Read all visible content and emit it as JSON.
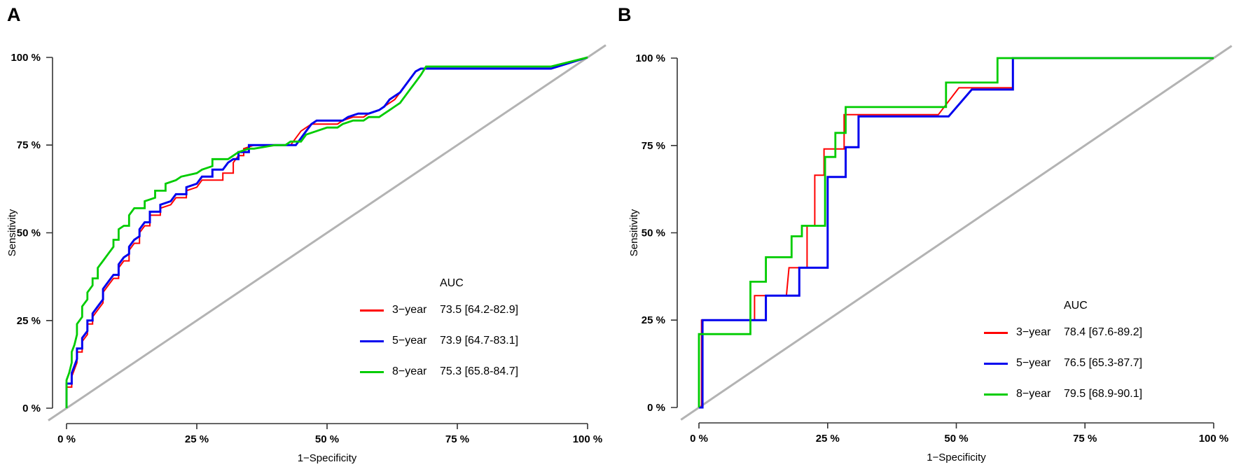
{
  "figure": {
    "background": "#ffffff",
    "axis_color": "#333333"
  },
  "chart_data": [
    {
      "id": "A",
      "panel_label": "A",
      "type": "line",
      "subtype": "roc-step-curves",
      "xlabel": "1−Specificity",
      "ylabel": "Sensitivity",
      "xlim": [
        0,
        100
      ],
      "ylim": [
        0,
        100
      ],
      "x_tick_labels": [
        "0 %",
        "25 %",
        "50 %",
        "75 %",
        "100 %"
      ],
      "y_tick_labels": [
        "0 %",
        "25 %",
        "50 %",
        "75 %",
        "100 %"
      ],
      "x_tick_values": [
        0,
        25,
        50,
        75,
        100
      ],
      "y_tick_values": [
        0,
        25,
        50,
        75,
        100
      ],
      "grid": false,
      "diagonal_reference": true,
      "diagonal_color": "#b3b3b3",
      "legend": {
        "header": "AUC",
        "position": "lower-right"
      },
      "series": [
        {
          "id": "red",
          "name": "3−year",
          "auc": 73.5,
          "auc_text": "73.5 [64.2-82.9]",
          "color": "#ff0000",
          "width": 2,
          "points": [
            [
              0,
              0
            ],
            [
              0,
              6
            ],
            [
              1,
              6
            ],
            [
              1,
              9
            ],
            [
              1.5,
              11
            ],
            [
              2,
              13
            ],
            [
              2,
              16
            ],
            [
              3,
              16
            ],
            [
              3,
              19
            ],
            [
              4,
              21
            ],
            [
              4,
              24
            ],
            [
              5,
              24
            ],
            [
              5,
              26
            ],
            [
              6,
              28
            ],
            [
              7,
              30
            ],
            [
              7,
              33
            ],
            [
              8,
              35
            ],
            [
              9,
              37
            ],
            [
              10,
              37
            ],
            [
              10,
              40
            ],
            [
              11,
              42
            ],
            [
              12,
              42
            ],
            [
              12,
              45
            ],
            [
              13,
              47
            ],
            [
              14,
              47
            ],
            [
              14,
              50
            ],
            [
              15,
              52
            ],
            [
              16,
              52
            ],
            [
              16,
              55
            ],
            [
              18,
              55
            ],
            [
              18,
              57
            ],
            [
              20,
              58
            ],
            [
              21,
              60
            ],
            [
              23,
              60
            ],
            [
              23,
              62
            ],
            [
              25,
              63
            ],
            [
              26,
              65
            ],
            [
              30,
              65
            ],
            [
              30,
              67
            ],
            [
              32,
              67
            ],
            [
              32,
              70
            ],
            [
              33,
              72
            ],
            [
              34,
              72
            ],
            [
              34,
              74
            ],
            [
              36,
              75
            ],
            [
              43,
              75
            ],
            [
              44,
              77
            ],
            [
              45,
              79
            ],
            [
              46,
              80
            ],
            [
              47,
              81
            ],
            [
              52,
              81
            ],
            [
              53,
              82
            ],
            [
              55,
              83
            ],
            [
              57,
              83
            ],
            [
              58,
              84
            ],
            [
              60,
              85
            ],
            [
              61,
              86
            ],
            [
              62,
              87
            ],
            [
              63,
              88
            ],
            [
              64,
              90
            ],
            [
              65,
              92
            ],
            [
              66,
              94
            ],
            [
              67,
              96
            ],
            [
              68,
              96.8
            ],
            [
              93,
              96.8
            ],
            [
              100,
              100
            ]
          ]
        },
        {
          "id": "blue",
          "name": "5−year",
          "auc": 73.9,
          "auc_text": "73.9 [64.7-83.1]",
          "color": "#0000ee",
          "width": 3,
          "points": [
            [
              0,
              0
            ],
            [
              0,
              7
            ],
            [
              1,
              7
            ],
            [
              1,
              10
            ],
            [
              1.5,
              12
            ],
            [
              2,
              14
            ],
            [
              2,
              17
            ],
            [
              3,
              17
            ],
            [
              3,
              20
            ],
            [
              4,
              22
            ],
            [
              4,
              25
            ],
            [
              5,
              25
            ],
            [
              5,
              27
            ],
            [
              6,
              29
            ],
            [
              7,
              31
            ],
            [
              7,
              34
            ],
            [
              8,
              36
            ],
            [
              9,
              38
            ],
            [
              10,
              38
            ],
            [
              10,
              41
            ],
            [
              11,
              43
            ],
            [
              12,
              44
            ],
            [
              12,
              46
            ],
            [
              13,
              48
            ],
            [
              14,
              49
            ],
            [
              14,
              51
            ],
            [
              15,
              53
            ],
            [
              16,
              53
            ],
            [
              16,
              56
            ],
            [
              18,
              56
            ],
            [
              18,
              58
            ],
            [
              20,
              59
            ],
            [
              21,
              61
            ],
            [
              23,
              61
            ],
            [
              23,
              63
            ],
            [
              25,
              64
            ],
            [
              26,
              66
            ],
            [
              28,
              66
            ],
            [
              28,
              68
            ],
            [
              30,
              68
            ],
            [
              31,
              70
            ],
            [
              32,
              71
            ],
            [
              33,
              71
            ],
            [
              33,
              73
            ],
            [
              35,
              73
            ],
            [
              35,
              75
            ],
            [
              37,
              75
            ],
            [
              44,
              75
            ],
            [
              45,
              77
            ],
            [
              46,
              79
            ],
            [
              47,
              81
            ],
            [
              48,
              82
            ],
            [
              53,
              82
            ],
            [
              54,
              83
            ],
            [
              56,
              84
            ],
            [
              58,
              84
            ],
            [
              60,
              85
            ],
            [
              61,
              86
            ],
            [
              62,
              88
            ],
            [
              63,
              89
            ],
            [
              64,
              90
            ],
            [
              65,
              92
            ],
            [
              66,
              94
            ],
            [
              67,
              96
            ],
            [
              68,
              96.8
            ],
            [
              93,
              96.8
            ],
            [
              100,
              100
            ]
          ]
        },
        {
          "id": "green",
          "name": "8−year",
          "auc": 75.3,
          "auc_text": "75.3 [65.8-84.7]",
          "color": "#00cc00",
          "width": 2.8,
          "points": [
            [
              0,
              0
            ],
            [
              0,
              8
            ],
            [
              0.5,
              10
            ],
            [
              1,
              13
            ],
            [
              1,
              16
            ],
            [
              1.5,
              18
            ],
            [
              2,
              21
            ],
            [
              2,
              24
            ],
            [
              3,
              26
            ],
            [
              3,
              29
            ],
            [
              4,
              31
            ],
            [
              4,
              33
            ],
            [
              5,
              35
            ],
            [
              5,
              37
            ],
            [
              6,
              37
            ],
            [
              6,
              40
            ],
            [
              7,
              42
            ],
            [
              8,
              44
            ],
            [
              9,
              46
            ],
            [
              9,
              48
            ],
            [
              10,
              48
            ],
            [
              10,
              51
            ],
            [
              11,
              52
            ],
            [
              12,
              52
            ],
            [
              12,
              55
            ],
            [
              13,
              57
            ],
            [
              15,
              57
            ],
            [
              15,
              59
            ],
            [
              17,
              60
            ],
            [
              17,
              62
            ],
            [
              19,
              62
            ],
            [
              19,
              64
            ],
            [
              21,
              65
            ],
            [
              22,
              66
            ],
            [
              25,
              67
            ],
            [
              26,
              68
            ],
            [
              28,
              69
            ],
            [
              28,
              71
            ],
            [
              31,
              71
            ],
            [
              32,
              72
            ],
            [
              33,
              73
            ],
            [
              35,
              74
            ],
            [
              36,
              74
            ],
            [
              40,
              75
            ],
            [
              42,
              75
            ],
            [
              43,
              76
            ],
            [
              45,
              76
            ],
            [
              46,
              78
            ],
            [
              48,
              79
            ],
            [
              50,
              80
            ],
            [
              52,
              80
            ],
            [
              53,
              81
            ],
            [
              55,
              82
            ],
            [
              57,
              82
            ],
            [
              58,
              83
            ],
            [
              60,
              83
            ],
            [
              61,
              84
            ],
            [
              62,
              85
            ],
            [
              63,
              86
            ],
            [
              64,
              87
            ],
            [
              65,
              89
            ],
            [
              66,
              91
            ],
            [
              67,
              93
            ],
            [
              68,
              95
            ],
            [
              69,
              97.4
            ],
            [
              93,
              97.4
            ],
            [
              100,
              100
            ]
          ]
        }
      ]
    },
    {
      "id": "B",
      "panel_label": "B",
      "type": "line",
      "subtype": "roc-step-curves",
      "xlabel": "1−Specificity",
      "ylabel": "Sensitivity",
      "xlim": [
        0,
        100
      ],
      "ylim": [
        0,
        100
      ],
      "x_tick_labels": [
        "0 %",
        "25 %",
        "50 %",
        "75 %",
        "100 %"
      ],
      "y_tick_labels": [
        "0 %",
        "25 %",
        "50 %",
        "75 %",
        "100 %"
      ],
      "x_tick_values": [
        0,
        25,
        50,
        75,
        100
      ],
      "y_tick_values": [
        0,
        25,
        50,
        75,
        100
      ],
      "grid": false,
      "diagonal_reference": true,
      "diagonal_color": "#b3b3b3",
      "legend": {
        "header": "AUC",
        "position": "lower-right"
      },
      "series": [
        {
          "id": "red",
          "name": "3−year",
          "auc": 78.4,
          "auc_text": "78.4 [67.6-89.2]",
          "color": "#ff0000",
          "width": 2,
          "points": [
            [
              0,
              0
            ],
            [
              0.5,
              0
            ],
            [
              0.5,
              25
            ],
            [
              10.8,
              25
            ],
            [
              10.8,
              32
            ],
            [
              17,
              32
            ],
            [
              17.5,
              40
            ],
            [
              21,
              40
            ],
            [
              21,
              52
            ],
            [
              22.5,
              52
            ],
            [
              22.5,
              66.5
            ],
            [
              24.3,
              66.5
            ],
            [
              24.3,
              74
            ],
            [
              28.2,
              74
            ],
            [
              28.2,
              83.8
            ],
            [
              46.5,
              83.8
            ],
            [
              50.5,
              91.5
            ],
            [
              61,
              91.5
            ],
            [
              61,
              100
            ],
            [
              100,
              100
            ]
          ]
        },
        {
          "id": "blue",
          "name": "5−year",
          "auc": 76.5,
          "auc_text": "76.5 [65.3-87.7]",
          "color": "#0000ee",
          "width": 3,
          "points": [
            [
              0,
              0
            ],
            [
              0.7,
              0
            ],
            [
              0.7,
              25
            ],
            [
              13,
              25
            ],
            [
              13,
              32
            ],
            [
              19.5,
              32
            ],
            [
              19.5,
              40
            ],
            [
              25,
              40
            ],
            [
              25,
              66
            ],
            [
              28.5,
              66
            ],
            [
              28.5,
              74.5
            ],
            [
              31,
              74.5
            ],
            [
              31,
              83.3
            ],
            [
              48.5,
              83.3
            ],
            [
              53,
              91
            ],
            [
              61,
              91
            ],
            [
              61,
              100
            ],
            [
              100,
              100
            ]
          ]
        },
        {
          "id": "green",
          "name": "8−year",
          "auc": 79.5,
          "auc_text": "79.5 [68.9-90.1]",
          "color": "#00cc00",
          "width": 2.8,
          "points": [
            [
              0,
              0
            ],
            [
              0,
              21
            ],
            [
              10,
              21
            ],
            [
              10,
              36
            ],
            [
              13,
              36
            ],
            [
              13,
              43
            ],
            [
              18,
              43
            ],
            [
              18,
              49
            ],
            [
              20,
              49
            ],
            [
              20,
              52
            ],
            [
              24.5,
              52
            ],
            [
              24.5,
              71.7
            ],
            [
              26.5,
              71.7
            ],
            [
              26.5,
              78.6
            ],
            [
              28.5,
              78.6
            ],
            [
              28.5,
              86
            ],
            [
              48,
              86
            ],
            [
              48,
              93
            ],
            [
              58,
              93
            ],
            [
              58,
              100
            ],
            [
              100,
              100
            ]
          ]
        }
      ]
    }
  ]
}
